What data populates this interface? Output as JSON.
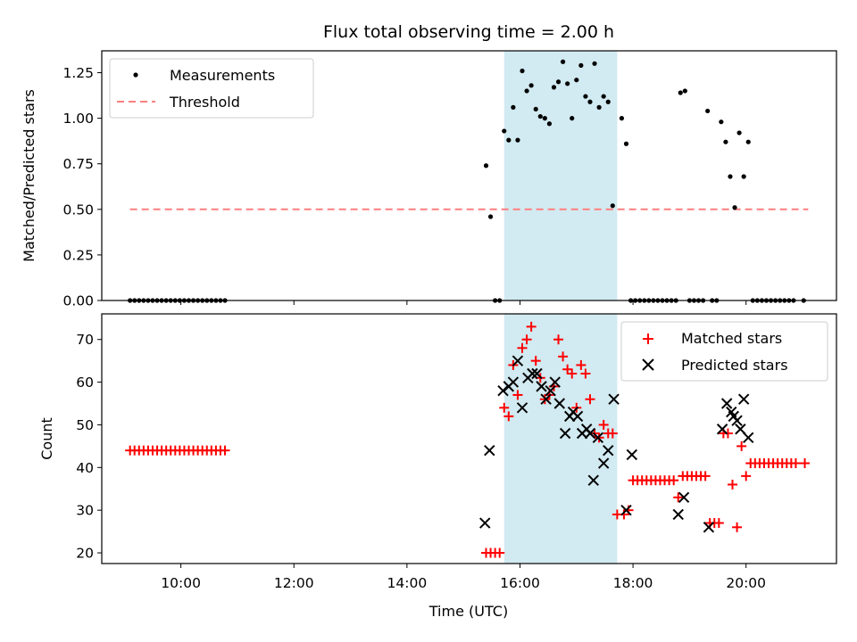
{
  "chart_data": {
    "type": "scatter",
    "title": "Flux total observing time = 2.00 h",
    "xlabel": "Time (UTC)",
    "x_unit": "hours UTC",
    "xlim": [
      8.6,
      21.6
    ],
    "x_ticks": [
      {
        "value": 10,
        "label": "10:00"
      },
      {
        "value": 12,
        "label": "12:00"
      },
      {
        "value": 14,
        "label": "14:00"
      },
      {
        "value": 16,
        "label": "16:00"
      },
      {
        "value": 18,
        "label": "18:00"
      },
      {
        "value": 20,
        "label": "20:00"
      }
    ],
    "observing_window": [
      15.72,
      17.72
    ],
    "top": {
      "ylabel": "Matched/Predicted stars",
      "ylim": [
        0,
        1.37
      ],
      "y_ticks": [
        "0.00",
        "0.25",
        "0.50",
        "0.75",
        "1.00",
        "1.25"
      ],
      "threshold": {
        "value": 0.5,
        "x_range": [
          9.1,
          21.1
        ],
        "color": "#ff7f7f"
      },
      "legend": {
        "position": "top-left",
        "entries": [
          "Measurements",
          "Threshold"
        ]
      },
      "measurements": {
        "name": "Measurements",
        "color": "#000000",
        "points": [
          [
            9.1,
            0
          ],
          [
            9.18,
            0
          ],
          [
            9.26,
            0
          ],
          [
            9.34,
            0
          ],
          [
            9.42,
            0
          ],
          [
            9.5,
            0
          ],
          [
            9.58,
            0
          ],
          [
            9.66,
            0
          ],
          [
            9.74,
            0
          ],
          [
            9.82,
            0
          ],
          [
            9.9,
            0
          ],
          [
            9.98,
            0
          ],
          [
            10.06,
            0
          ],
          [
            10.14,
            0
          ],
          [
            10.22,
            0
          ],
          [
            10.3,
            0
          ],
          [
            10.38,
            0
          ],
          [
            10.46,
            0
          ],
          [
            10.54,
            0
          ],
          [
            10.62,
            0
          ],
          [
            10.7,
            0
          ],
          [
            10.78,
            0
          ],
          [
            15.4,
            0.74
          ],
          [
            15.48,
            0.46
          ],
          [
            15.56,
            0
          ],
          [
            15.64,
            0
          ],
          [
            15.72,
            0.93
          ],
          [
            15.8,
            0.88
          ],
          [
            15.88,
            1.06
          ],
          [
            15.96,
            0.88
          ],
          [
            16.04,
            1.26
          ],
          [
            16.12,
            1.15
          ],
          [
            16.2,
            1.18
          ],
          [
            16.28,
            1.05
          ],
          [
            16.36,
            1.01
          ],
          [
            16.44,
            1.0
          ],
          [
            16.52,
            0.97
          ],
          [
            16.6,
            1.17
          ],
          [
            16.68,
            1.2
          ],
          [
            16.76,
            1.31
          ],
          [
            16.84,
            1.19
          ],
          [
            16.92,
            1.0
          ],
          [
            17.0,
            1.21
          ],
          [
            17.08,
            1.29
          ],
          [
            17.16,
            1.12
          ],
          [
            17.24,
            1.09
          ],
          [
            17.32,
            1.3
          ],
          [
            17.4,
            1.06
          ],
          [
            17.48,
            1.12
          ],
          [
            17.56,
            1.09
          ],
          [
            17.64,
            0.52
          ],
          [
            17.8,
            1.0
          ],
          [
            17.88,
            0.86
          ],
          [
            17.96,
            0
          ],
          [
            18.04,
            0
          ],
          [
            18.12,
            0
          ],
          [
            18.2,
            0
          ],
          [
            18.28,
            0
          ],
          [
            18.36,
            0
          ],
          [
            18.44,
            0
          ],
          [
            18.52,
            0
          ],
          [
            18.6,
            0
          ],
          [
            18.68,
            0
          ],
          [
            18.76,
            0
          ],
          [
            18.84,
            1.14
          ],
          [
            18.92,
            1.15
          ],
          [
            19.0,
            0
          ],
          [
            19.08,
            0
          ],
          [
            19.16,
            0
          ],
          [
            19.24,
            0
          ],
          [
            19.32,
            1.04
          ],
          [
            19.4,
            0
          ],
          [
            19.48,
            0
          ],
          [
            19.56,
            0.98
          ],
          [
            19.64,
            0.87
          ],
          [
            19.72,
            0.68
          ],
          [
            19.8,
            0.51
          ],
          [
            19.88,
            0.92
          ],
          [
            19.96,
            0.68
          ],
          [
            20.04,
            0.87
          ],
          [
            20.12,
            0
          ],
          [
            20.2,
            0
          ],
          [
            20.28,
            0
          ],
          [
            20.36,
            0
          ],
          [
            20.44,
            0
          ],
          [
            20.52,
            0
          ],
          [
            20.6,
            0
          ],
          [
            20.68,
            0
          ],
          [
            20.76,
            0
          ],
          [
            20.84,
            0
          ],
          [
            21.02,
            0
          ]
        ]
      }
    },
    "bottom": {
      "ylabel": "Count",
      "ylim": [
        17.5,
        76.0
      ],
      "y_ticks": [
        "20",
        "30",
        "40",
        "50",
        "60",
        "70"
      ],
      "legend": {
        "position": "top-right",
        "entries": [
          "Matched stars",
          "Predicted stars"
        ]
      },
      "matched": {
        "name": "Matched stars",
        "marker": "+",
        "color": "#ff0000",
        "points": [
          [
            9.1,
            44
          ],
          [
            9.18,
            44
          ],
          [
            9.26,
            44
          ],
          [
            9.34,
            44
          ],
          [
            9.42,
            44
          ],
          [
            9.5,
            44
          ],
          [
            9.58,
            44
          ],
          [
            9.66,
            44
          ],
          [
            9.74,
            44
          ],
          [
            9.82,
            44
          ],
          [
            9.9,
            44
          ],
          [
            9.98,
            44
          ],
          [
            10.06,
            44
          ],
          [
            10.14,
            44
          ],
          [
            10.22,
            44
          ],
          [
            10.3,
            44
          ],
          [
            10.38,
            44
          ],
          [
            10.46,
            44
          ],
          [
            10.54,
            44
          ],
          [
            10.62,
            44
          ],
          [
            10.7,
            44
          ],
          [
            10.78,
            44
          ],
          [
            15.4,
            20
          ],
          [
            15.48,
            20
          ],
          [
            15.56,
            20
          ],
          [
            15.64,
            20
          ],
          [
            15.72,
            54
          ],
          [
            15.8,
            52
          ],
          [
            15.88,
            64
          ],
          [
            15.96,
            57
          ],
          [
            16.04,
            68
          ],
          [
            16.12,
            70
          ],
          [
            16.2,
            73
          ],
          [
            16.28,
            65
          ],
          [
            16.36,
            61
          ],
          [
            16.44,
            56
          ],
          [
            16.52,
            57
          ],
          [
            16.6,
            59
          ],
          [
            16.68,
            70
          ],
          [
            16.76,
            66
          ],
          [
            16.84,
            63
          ],
          [
            16.92,
            62
          ],
          [
            17.0,
            54
          ],
          [
            17.08,
            64
          ],
          [
            17.16,
            62
          ],
          [
            17.24,
            56
          ],
          [
            17.32,
            48
          ],
          [
            17.4,
            47
          ],
          [
            17.48,
            50
          ],
          [
            17.56,
            48
          ],
          [
            17.64,
            48
          ],
          [
            17.72,
            29
          ],
          [
            17.84,
            29
          ],
          [
            17.92,
            30
          ],
          [
            18.0,
            37
          ],
          [
            18.08,
            37
          ],
          [
            18.16,
            37
          ],
          [
            18.24,
            37
          ],
          [
            18.32,
            37
          ],
          [
            18.4,
            37
          ],
          [
            18.48,
            37
          ],
          [
            18.56,
            37
          ],
          [
            18.64,
            37
          ],
          [
            18.72,
            37
          ],
          [
            18.8,
            33
          ],
          [
            18.88,
            38
          ],
          [
            18.96,
            38
          ],
          [
            19.04,
            38
          ],
          [
            19.12,
            38
          ],
          [
            19.2,
            38
          ],
          [
            19.28,
            38
          ],
          [
            19.36,
            27
          ],
          [
            19.44,
            27
          ],
          [
            19.52,
            27
          ],
          [
            19.6,
            48
          ],
          [
            19.68,
            48
          ],
          [
            19.76,
            36
          ],
          [
            19.84,
            26
          ],
          [
            19.92,
            45
          ],
          [
            20.0,
            38
          ],
          [
            20.08,
            41
          ],
          [
            20.16,
            41
          ],
          [
            20.24,
            41
          ],
          [
            20.32,
            41
          ],
          [
            20.4,
            41
          ],
          [
            20.48,
            41
          ],
          [
            20.56,
            41
          ],
          [
            20.64,
            41
          ],
          [
            20.72,
            41
          ],
          [
            20.8,
            41
          ],
          [
            20.88,
            41
          ],
          [
            21.04,
            41
          ]
        ]
      },
      "predicted": {
        "name": "Predicted stars",
        "marker": "x",
        "color": "#000000",
        "points": [
          [
            15.38,
            27
          ],
          [
            15.46,
            44
          ],
          [
            15.7,
            58
          ],
          [
            15.8,
            59
          ],
          [
            15.88,
            60
          ],
          [
            15.96,
            65
          ],
          [
            16.04,
            54
          ],
          [
            16.14,
            61
          ],
          [
            16.22,
            62
          ],
          [
            16.3,
            62
          ],
          [
            16.38,
            59
          ],
          [
            16.46,
            56
          ],
          [
            16.54,
            58
          ],
          [
            16.62,
            60
          ],
          [
            16.7,
            55
          ],
          [
            16.8,
            48
          ],
          [
            16.88,
            52
          ],
          [
            16.94,
            53
          ],
          [
            17.02,
            52
          ],
          [
            17.1,
            48
          ],
          [
            17.18,
            49
          ],
          [
            17.24,
            48
          ],
          [
            17.3,
            37
          ],
          [
            17.38,
            47
          ],
          [
            17.48,
            41
          ],
          [
            17.56,
            44
          ],
          [
            17.66,
            56
          ],
          [
            17.88,
            30
          ],
          [
            17.98,
            43
          ],
          [
            18.8,
            29
          ],
          [
            18.9,
            33
          ],
          [
            19.34,
            26
          ],
          [
            19.58,
            49
          ],
          [
            19.66,
            55
          ],
          [
            19.74,
            53
          ],
          [
            19.78,
            52
          ],
          [
            19.84,
            51
          ],
          [
            19.9,
            49
          ],
          [
            19.96,
            56
          ],
          [
            20.04,
            47
          ]
        ]
      }
    }
  }
}
